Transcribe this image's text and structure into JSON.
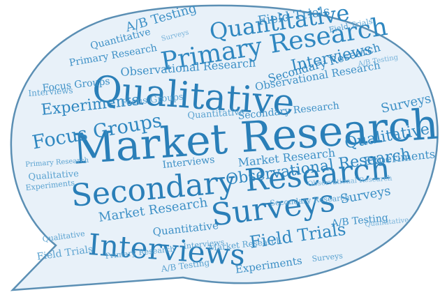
{
  "palette": {
    "bubble_fill": "#e8f1f9",
    "bubble_stroke": "#5b8fb4",
    "word_primary": "#2a7fb8"
  },
  "words": [
    "Market Research",
    "Qualitative",
    "Secondary Research",
    "Surveys",
    "Interviews",
    "Primary Research",
    "Quantitative",
    "Focus Groups",
    "Observational Research",
    "Experiments",
    "Field Trials",
    "A/B Testing",
    "Quantitative",
    "Interviews",
    "Field Trials",
    "Secondary Research",
    "Surveys",
    "Qualitative",
    "Experiments",
    "Market Research",
    "Observational Research",
    "Primary Research",
    "Focus Groups",
    "A/B Testing",
    "Secondary Research",
    "Market Research",
    "Quantitative",
    "Interviews",
    "Surveys",
    "Experiments",
    "Qualitative",
    "Observational Research",
    "Interviews",
    "Field Trials",
    "Primary Research",
    "Surveys",
    "A/B Testing",
    "Secondary Research",
    "Focus Groups",
    "Quantitative",
    "Experiments",
    "Qualitative",
    "Interviews",
    "Market Research",
    "Primary Research",
    "Field Trials",
    "Surveys",
    "A/B Testing",
    "Quantitative",
    "Observational Research"
  ]
}
